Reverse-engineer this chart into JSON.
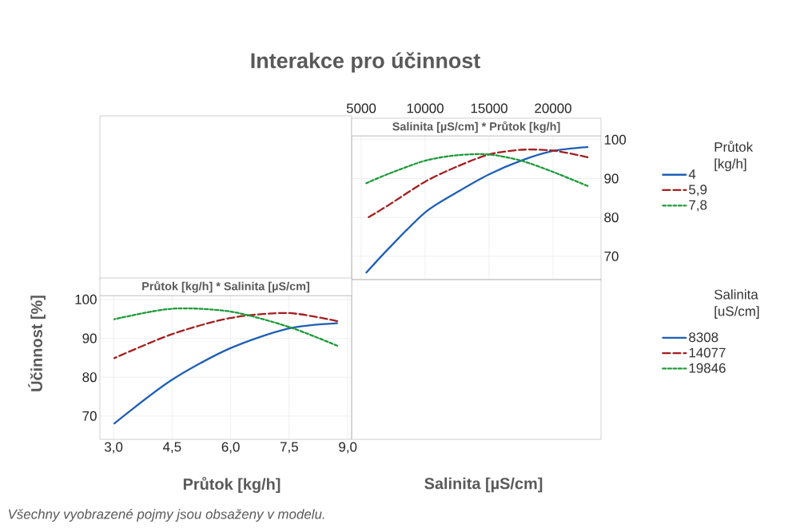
{
  "chart_data": [
    {
      "type": "line",
      "title": "Interakce pro účinnost",
      "subtitle": "Salinita [µS/cm] * Průtok [kg/h]",
      "xlabel": "Salinita [µS/cm]",
      "legend_title": "Průtok [kg/h]",
      "x": [
        5400,
        7200,
        10000,
        12500,
        15000,
        17500,
        20000,
        22700
      ],
      "series": [
        {
          "name": "4",
          "color": "#1f5fb5",
          "line_style": "solid",
          "values": [
            65.8,
            72.2,
            81.3,
            86.5,
            91.1,
            94.6,
            97.1,
            98.1
          ]
        },
        {
          "name": "5,9",
          "color": "#a31f1f",
          "line_style": "dashed",
          "values": [
            79.7,
            83.3,
            89.2,
            93.1,
            96.2,
            97.4,
            97.2,
            95.5
          ]
        },
        {
          "name": "7,8",
          "color": "#1e9a3a",
          "line_style": "dotted",
          "values": [
            88.8,
            91.3,
            94.6,
            96.0,
            96.2,
            94.6,
            91.7,
            88.1
          ]
        }
      ],
      "xlim": [
        4250,
        23750
      ],
      "ylim": [
        64,
        101
      ],
      "xticks": [
        5000,
        10000,
        15000,
        20000
      ],
      "yticks": [
        70,
        80,
        90,
        100
      ],
      "grid": true,
      "legend": "right"
    },
    {
      "type": "line",
      "subtitle": "Průtok [kg/h] * Salinita [µS/cm]",
      "xlabel": "Průtok [kg/h]",
      "ylabel": "Účinnost [%]",
      "legend_title": "Salinita [uS/cm]",
      "annotations": [
        "Všechny vyobrazené pojmy jsou obsaženy v modelu."
      ],
      "x": [
        3.02,
        4.48,
        5.98,
        7.47,
        8.73
      ],
      "series": [
        {
          "name": "8308",
          "color": "#1f5fb5",
          "line_style": "solid",
          "values": [
            68.1,
            79.2,
            87.4,
            92.5,
            93.9
          ]
        },
        {
          "name": "14077",
          "color": "#a31f1f",
          "line_style": "dashed",
          "values": [
            84.9,
            91.0,
            95.2,
            96.5,
            94.4
          ]
        },
        {
          "name": "19846",
          "color": "#1e9a3a",
          "line_style": "dotted",
          "values": [
            94.9,
            97.6,
            96.9,
            93.0,
            88.1
          ]
        }
      ],
      "xlim": [
        2.65,
        9.1
      ],
      "ylim": [
        64,
        101
      ],
      "xticks": [
        {
          "value": 3,
          "label": "3,0"
        },
        {
          "value": 4.5,
          "label": "4,5"
        },
        {
          "value": 6,
          "label": "6,0"
        },
        {
          "value": 7.5,
          "label": "7,5"
        },
        {
          "value": 9,
          "label": "9,0"
        }
      ],
      "yticks": [
        70,
        80,
        90,
        100
      ],
      "grid": true,
      "legend": "right"
    }
  ]
}
